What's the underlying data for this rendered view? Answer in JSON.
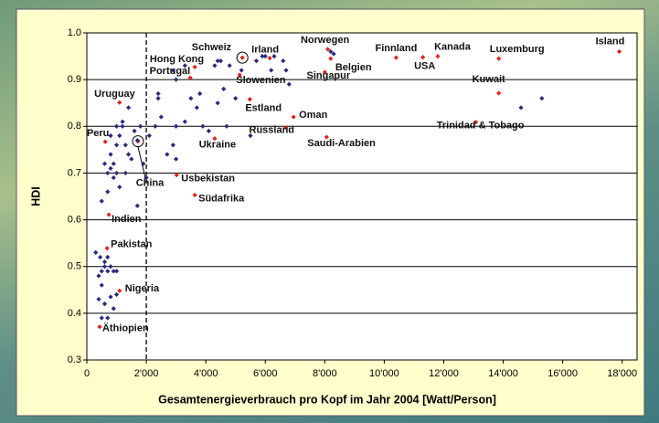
{
  "chart_data": {
    "type": "scatter",
    "xlabel": "Gesamtenergieverbrauch pro Kopf im Jahr 2004 [Watt/Person]",
    "ylabel": "HDI",
    "xlim": [
      0,
      18500
    ],
    "xticks": [
      0,
      {
        "value": 2000,
        "label": "2'000"
      },
      {
        "value": 4000,
        "label": "4'000"
      },
      {
        "value": 6000,
        "label": "6'000"
      },
      {
        "value": 8000,
        "label": "8'000"
      },
      {
        "value": 10000,
        "label": "10'000"
      },
      {
        "value": 12000,
        "label": "12'000"
      },
      {
        "value": 14000,
        "label": "14'000"
      },
      {
        "value": 16000,
        "label": "16'000"
      },
      {
        "value": 18000,
        "label": "18'000"
      }
    ],
    "ylim": [
      0.3,
      1.0
    ],
    "yticks": [
      0.3,
      0.4,
      0.5,
      0.6,
      0.7,
      0.8,
      0.9,
      {
        "value": 1.0,
        "label": "1.0"
      }
    ],
    "grid": true,
    "reference_line": {
      "x": 2000,
      "style": "dashed"
    },
    "series": [
      {
        "color": "#e3231b",
        "labels": [
          "Island",
          "Luxemburg",
          "Kanada",
          "USA",
          "Finnland",
          "Norwegen",
          "Belgien",
          "Schweiz",
          "Irland",
          "Hong Kong",
          "Portugal",
          "Slowenien",
          "Singapur",
          "Kuwait",
          "Trinidad & Tobago",
          "Estland",
          "Oman",
          "Russland",
          "Saudi-Arabien",
          "Ukraine",
          "Uruguay",
          "Peru",
          "China",
          "Usbekistan",
          "Südafrika",
          "Indien",
          "Pakistan",
          "Nigeria",
          "Äthiopien"
        ],
        "x": [
          17900,
          13850,
          11800,
          11300,
          10400,
          8100,
          8200,
          5230,
          6150,
          3630,
          3480,
          5140,
          8000,
          13850,
          13080,
          5480,
          6950,
          6700,
          8060,
          4300,
          1100,
          620,
          1720,
          3020,
          3630,
          740,
          680,
          1100,
          430
        ],
        "values": [
          0.96,
          0.945,
          0.95,
          0.948,
          0.947,
          0.965,
          0.945,
          0.947,
          0.946,
          0.927,
          0.904,
          0.91,
          0.916,
          0.871,
          0.809,
          0.858,
          0.82,
          0.797,
          0.777,
          0.774,
          0.851,
          0.767,
          0.768,
          0.696,
          0.653,
          0.611,
          0.539,
          0.448,
          0.371
        ]
      },
      {
        "color": "#2a2a7c",
        "x": [
          300,
          450,
          500,
          400,
          600,
          700,
          800,
          900,
          1000,
          500,
          400,
          600,
          700,
          500,
          900,
          800,
          1000,
          600,
          700,
          500,
          700,
          700,
          800,
          900,
          1000,
          800,
          900,
          1000,
          1100,
          1200,
          1300,
          1400,
          1500,
          1300,
          1600,
          1800,
          1700,
          1900,
          2000,
          1700,
          1200,
          1400,
          800,
          1000,
          1100,
          600,
          2100,
          2300,
          2400,
          2500,
          2700,
          2900,
          3000,
          3300,
          3500,
          3700,
          3800,
          3900,
          4100,
          4600,
          4700,
          5000,
          5200,
          4800,
          4400,
          4300,
          4500,
          5700,
          6000,
          6300,
          6600,
          6700,
          6200,
          6800,
          3300,
          3000,
          2900,
          5500,
          4400,
          8200,
          8300,
          15300,
          14600,
          2400,
          3000,
          5900
        ],
        "values": [
          0.53,
          0.52,
          0.49,
          0.48,
          0.5,
          0.49,
          0.5,
          0.49,
          0.49,
          0.46,
          0.43,
          0.42,
          0.39,
          0.39,
          0.41,
          0.435,
          0.44,
          0.51,
          0.52,
          0.64,
          0.66,
          0.7,
          0.71,
          0.69,
          0.7,
          0.74,
          0.72,
          0.76,
          0.78,
          0.8,
          0.76,
          0.74,
          0.73,
          0.7,
          0.79,
          0.8,
          0.77,
          0.72,
          0.69,
          0.63,
          0.81,
          0.84,
          0.78,
          0.8,
          0.67,
          0.72,
          0.78,
          0.8,
          0.86,
          0.82,
          0.74,
          0.76,
          0.8,
          0.81,
          0.86,
          0.84,
          0.87,
          0.8,
          0.79,
          0.88,
          0.8,
          0.86,
          0.92,
          0.93,
          0.94,
          0.93,
          0.94,
          0.94,
          0.95,
          0.95,
          0.94,
          0.92,
          0.92,
          0.89,
          0.93,
          0.9,
          0.92,
          0.78,
          0.85,
          0.96,
          0.955,
          0.86,
          0.84,
          0.87,
          0.73,
          0.95
        ]
      }
    ]
  }
}
